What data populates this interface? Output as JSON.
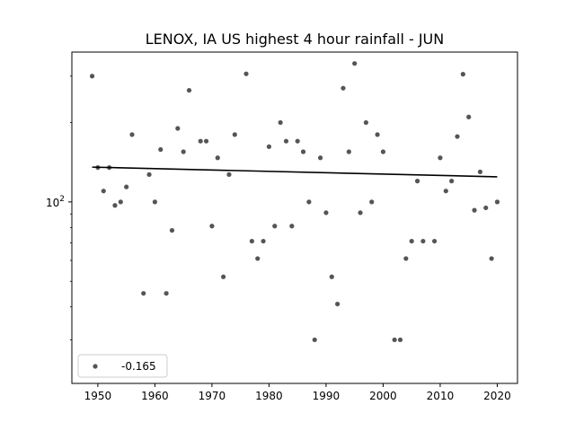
{
  "chart_data": {
    "type": "scatter",
    "title": "LENOX, IA US highest 4 hour rainfall - JUN",
    "xlabel": "",
    "ylabel": "",
    "yscale": "log",
    "xlim": [
      1945.45,
      2023.55
    ],
    "ylim": [
      20.5,
      370
    ],
    "xticks": [
      1950,
      1960,
      1970,
      1980,
      1990,
      2000,
      2010,
      2020
    ],
    "yticks": [
      {
        "value": 100,
        "base": "10",
        "exp": "2"
      }
    ],
    "points_color": "#555555",
    "trend_color": "#000000",
    "series": [
      {
        "name": "-0.165",
        "x": [
          1949,
          1950,
          1951,
          1952,
          1953,
          1954,
          1955,
          1956,
          1958,
          1959,
          1960,
          1961,
          1962,
          1963,
          1964,
          1965,
          1966,
          1968,
          1969,
          1970,
          1971,
          1972,
          1973,
          1974,
          1976,
          1977,
          1978,
          1979,
          1980,
          1981,
          1982,
          1983,
          1984,
          1985,
          1986,
          1987,
          1988,
          1989,
          1990,
          1991,
          1992,
          1993,
          1994,
          1995,
          1996,
          1997,
          1998,
          1999,
          2000,
          2002,
          2003,
          2004,
          2005,
          2006,
          2007,
          2009,
          2010,
          2011,
          2012,
          2013,
          2014,
          2015,
          2016,
          2017,
          2018,
          2019,
          2020
        ],
        "y": [
          300,
          135,
          110,
          135,
          97,
          100,
          114,
          180,
          45,
          127,
          100,
          158,
          45,
          78,
          190,
          155,
          265,
          170,
          170,
          81,
          147,
          52,
          127,
          180,
          306,
          71,
          61,
          71,
          162,
          81,
          200,
          170,
          81,
          170,
          155,
          100,
          30,
          147,
          91,
          52,
          41,
          270,
          155,
          335,
          91,
          200,
          100,
          180,
          155,
          30,
          30,
          61,
          71,
          120,
          71,
          71,
          147,
          110,
          120,
          177,
          305,
          210,
          93,
          130,
          95,
          61,
          100
        ]
      }
    ],
    "trend": {
      "x": [
        1949,
        2020
      ],
      "y": [
        135.5,
        124.5
      ]
    },
    "legend": {
      "location": "lower-left",
      "label": "-0.165"
    }
  }
}
